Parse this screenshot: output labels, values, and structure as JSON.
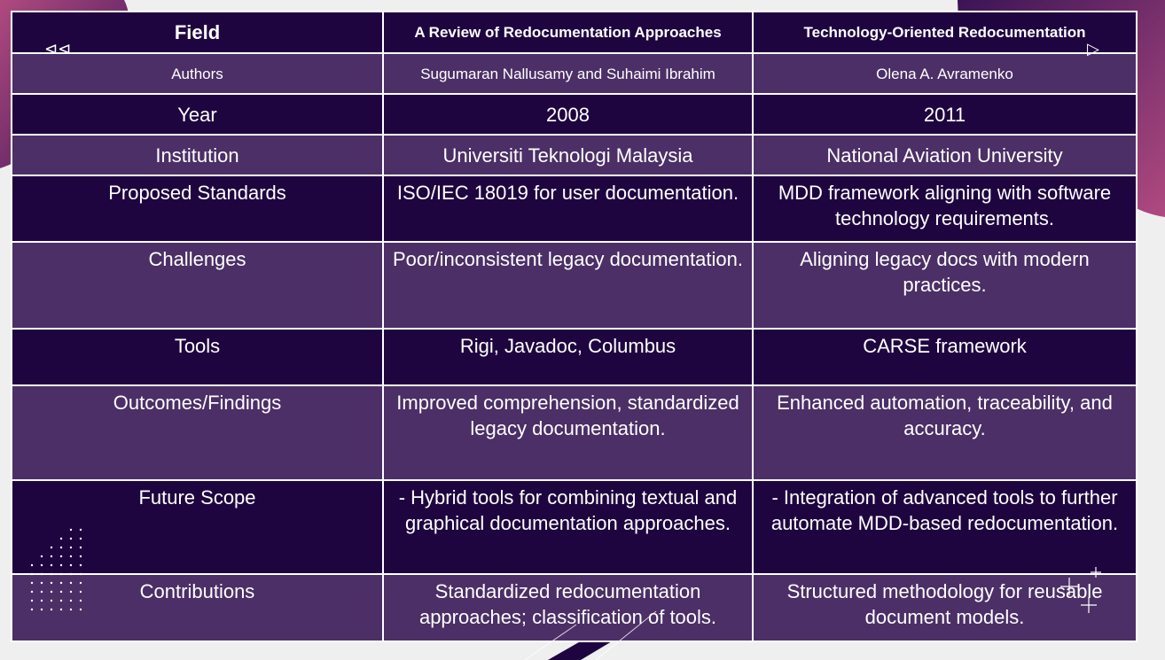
{
  "nav": {
    "prev_icon": "rewind-icon",
    "next_icon": "play-icon"
  },
  "colors": {
    "header_row": "#1f0540",
    "alt_row": "#4c2f66",
    "accent_blob": "#9a3a72"
  },
  "table": {
    "headers": [
      "Field",
      "A Review of Redocumentation Approaches",
      "Technology-Oriented Redocumentation"
    ],
    "rows": [
      [
        "Authors",
        "Sugumaran Nallusamy and Suhaimi Ibrahim",
        "Olena A. Avramenko"
      ],
      [
        "Year",
        "2008",
        "2011"
      ],
      [
        "Institution",
        "Universiti Teknologi Malaysia",
        "National Aviation University"
      ],
      [
        "Proposed Standards",
        "ISO/IEC 18019 for user documentation.",
        "MDD framework aligning with software technology requirements."
      ],
      [
        "Challenges",
        "Poor/inconsistent legacy documentation.",
        "Aligning legacy docs with modern practices."
      ],
      [
        "Tools",
        "Rigi, Javadoc, Columbus",
        "CARSE framework"
      ],
      [
        "Outcomes/Findings",
        "Improved comprehension, standardized legacy documentation.",
        "Enhanced automation, traceability, and accuracy."
      ],
      [
        "Future Scope",
        "- Hybrid tools for combining textual and graphical documentation approaches.",
        "- Integration of advanced tools to further automate MDD-based redocumentation."
      ],
      [
        "Contributions",
        "Standardized redocumentation approaches; classification of tools.",
        "Structured methodology for reusable document models."
      ]
    ]
  }
}
